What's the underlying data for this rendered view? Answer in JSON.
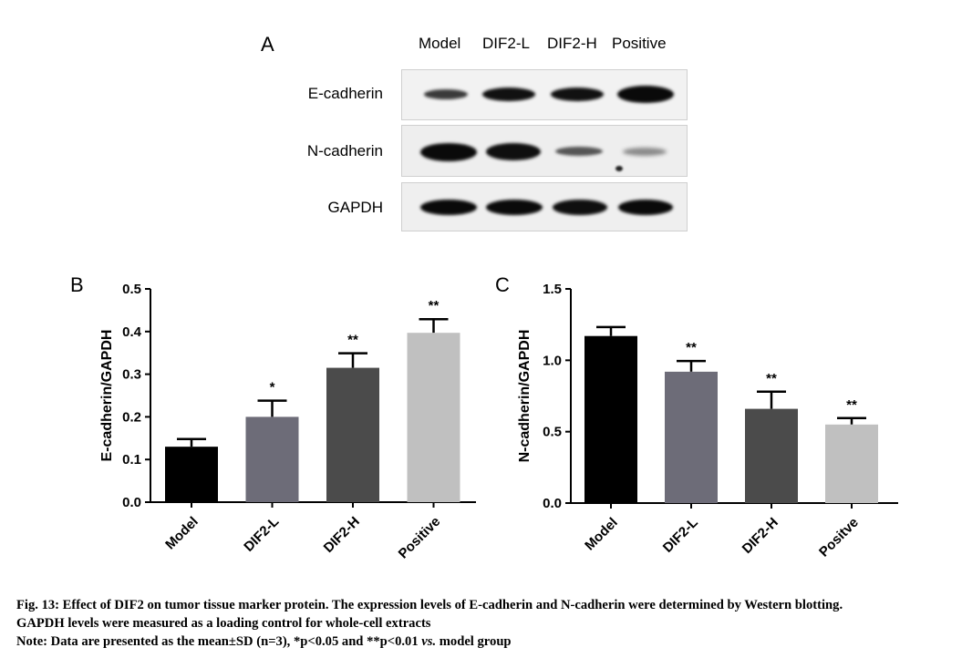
{
  "panelA": {
    "letter": "A",
    "lanes": [
      "Model",
      "DIF2-L",
      "DIF2-H",
      "Positive"
    ],
    "rows": [
      "E-cadherin",
      "N-cadherin",
      "GAPDH"
    ]
  },
  "chart_data": [
    {
      "panel": "B",
      "type": "bar",
      "categories": [
        "Model",
        "DIF2-L",
        "DIF2-H",
        "Positive"
      ],
      "values": [
        0.13,
        0.2,
        0.315,
        0.397
      ],
      "errors": [
        0.018,
        0.038,
        0.034,
        0.032
      ],
      "significance": [
        "",
        "*",
        "**",
        "**"
      ],
      "colors": [
        "#000000",
        "#6d6c78",
        "#4b4b4b",
        "#c0c0c0"
      ],
      "ylabel": "E-cadherin/GAPDH",
      "xlabel": "",
      "ylim": [
        0,
        0.5
      ],
      "yticks": [
        "0.0",
        "0.1",
        "0.2",
        "0.3",
        "0.4",
        "0.5"
      ],
      "grid": false
    },
    {
      "panel": "C",
      "type": "bar",
      "categories": [
        "Model",
        "DIF2-L",
        "DIF2-H",
        "Positve"
      ],
      "values": [
        1.17,
        0.92,
        0.66,
        0.55
      ],
      "errors": [
        0.063,
        0.075,
        0.12,
        0.045
      ],
      "significance": [
        "",
        "**",
        "**",
        "**"
      ],
      "colors": [
        "#000000",
        "#6d6c78",
        "#4b4b4b",
        "#c0c0c0"
      ],
      "ylabel": "N-cadherin/GAPDH",
      "xlabel": "",
      "ylim": [
        0,
        1.5
      ],
      "yticks": [
        "0.0",
        "0.5",
        "1.0",
        "1.5"
      ],
      "grid": false
    }
  ],
  "caption": {
    "line1": "Fig. 13: Effect of DIF2 on tumor tissue marker protein. The expression levels of E-cadherin and N-cadherin were determined by Western blotting.",
    "line2": "GAPDH levels were measured as a loading control for whole-cell extracts",
    "line3_pre": "Note: Data are presented as the mean±SD (n=3), *p<0.05 and **p<0.01 ",
    "line3_vs": "vs.",
    "line3_post": " model group"
  }
}
